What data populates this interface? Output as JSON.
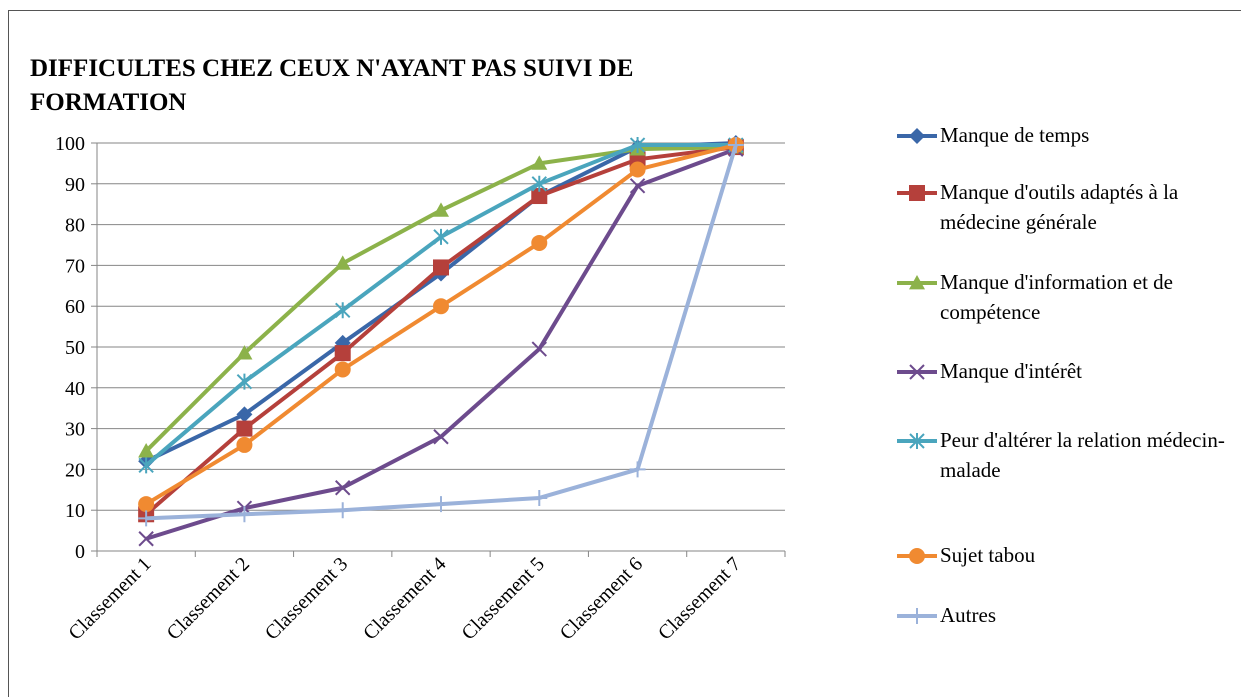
{
  "chart_data": {
    "type": "line",
    "title": "DIFFICULTES CHEZ CEUX N'AYANT PAS SUIVI DE FORMATION",
    "categories": [
      "Classement 1",
      "Classement 2",
      "Classement 3",
      "Classement 4",
      "Classement 5",
      "Classement 6",
      "Classement 7"
    ],
    "series": [
      {
        "name": "Manque de temps",
        "color": "#3a67a8",
        "marker": "diamond",
        "values": [
          22,
          33.5,
          51,
          68,
          87,
          99,
          100
        ]
      },
      {
        "name": "Manque d'outils adaptés à la médecine générale",
        "color": "#b5403b",
        "marker": "square",
        "values": [
          9,
          30,
          48.5,
          69.5,
          87,
          96,
          99
        ]
      },
      {
        "name": "Manque d'information et de compétence",
        "color": "#8cb24a",
        "marker": "triangle",
        "values": [
          24.5,
          48.5,
          70.5,
          83.5,
          95,
          98.5,
          99
        ]
      },
      {
        "name": "Manque d'intérêt",
        "color": "#6d4b8d",
        "marker": "x",
        "values": [
          3,
          10.5,
          15.5,
          28,
          49.5,
          89.5,
          98.5
        ]
      },
      {
        "name": "Peur d'altérer la relation médecin-malade",
        "color": "#4aa5bd",
        "marker": "asterisk",
        "values": [
          21,
          41.5,
          59,
          77,
          90,
          99.5,
          99.5
        ]
      },
      {
        "name": "Sujet tabou",
        "color": "#f08a31",
        "marker": "circle",
        "values": [
          11.5,
          26,
          44.5,
          60,
          75.5,
          93.5,
          99.5
        ]
      },
      {
        "name": "Autres",
        "color": "#9bb2da",
        "marker": "plus",
        "values": [
          8,
          9,
          10,
          11.5,
          13,
          20,
          99.5
        ]
      }
    ],
    "ylim": [
      0,
      100
    ],
    "yticks": [
      0,
      10,
      20,
      30,
      40,
      50,
      60,
      70,
      80,
      90,
      100
    ],
    "grid": true,
    "legend": "right"
  }
}
